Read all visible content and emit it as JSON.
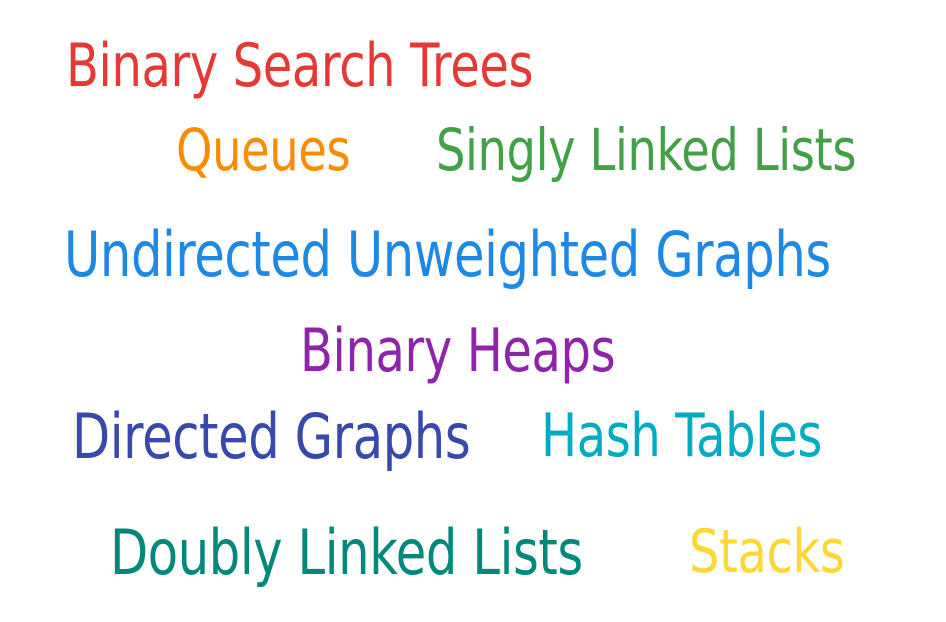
{
  "words": [
    {
      "text": "Binary Search Trees",
      "color": "#e53935"
    },
    {
      "text": "Queues",
      "color": "#fb8c00"
    },
    {
      "text": "Singly Linked Lists",
      "color": "#43a047"
    },
    {
      "text": "Undirected Unweighted Graphs",
      "color": "#1e88e5"
    },
    {
      "text": "Binary Heaps",
      "color": "#8e24aa"
    },
    {
      "text": "Directed Graphs",
      "color": "#3949ab"
    },
    {
      "text": "Hash Tables",
      "color": "#00acc1"
    },
    {
      "text": "Doubly Linked Lists",
      "color": "#00897b"
    },
    {
      "text": "Stacks",
      "color": "#fdd835"
    }
  ]
}
